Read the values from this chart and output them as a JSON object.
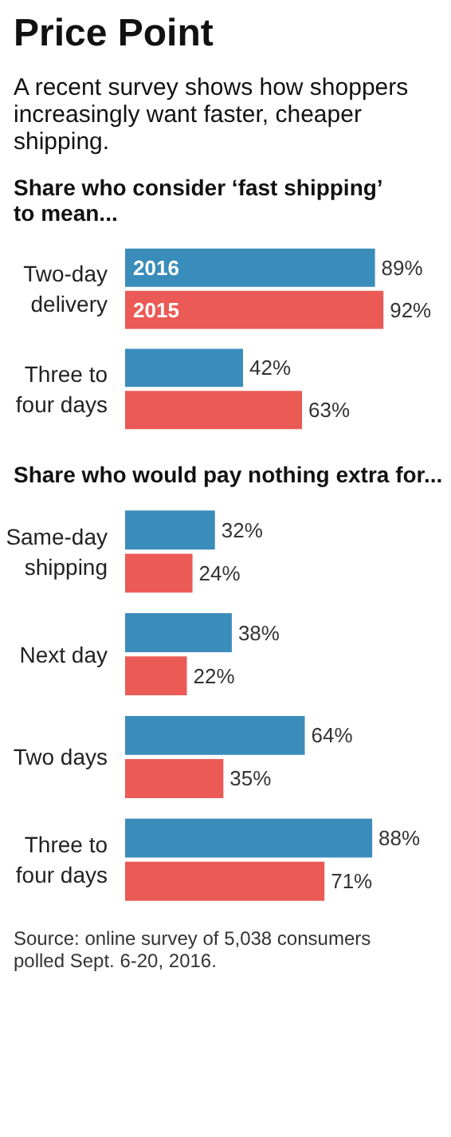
{
  "chart_data": [
    {
      "type": "bar",
      "orientation": "horizontal",
      "title": "Price Point",
      "subtitle": "A recent survey shows how shoppers increasingly want faster, cheaper shipping.",
      "annotations": [
        "Share who consider ‘fast shipping’ to mean..."
      ],
      "categories": [
        "Two-day delivery",
        "Three to four days"
      ],
      "tick_labels": "y",
      "grid": false,
      "series": [
        {
          "name": "2016",
          "color": "#3a8dbb",
          "values": [
            89,
            42
          ],
          "value_labels": [
            "89%",
            "42%"
          ]
        },
        {
          "name": "2015",
          "color": "#ec5a55",
          "values": [
            92,
            63
          ],
          "value_labels": [
            "92%",
            "63%"
          ]
        }
      ]
    },
    {
      "type": "bar",
      "orientation": "horizontal",
      "title": "Share who would pay nothing extra for...",
      "annotations": [
        "Source: online survey of 5,038 consumers polled Sept. 6-20, 2016."
      ],
      "categories": [
        "Same-day shipping",
        "Next day",
        "Two days",
        "Three to four days"
      ],
      "tick_labels": "y",
      "grid": false,
      "series": [
        {
          "color": "#3a8dbb",
          "values": [
            32,
            38,
            64,
            88
          ],
          "value_labels": [
            "32%",
            "38%",
            "64%",
            "88%"
          ]
        },
        {
          "color": "#ec5a55",
          "values": [
            24,
            22,
            35,
            71
          ],
          "value_labels": [
            "24%",
            "22%",
            "35%",
            "71%"
          ]
        }
      ]
    }
  ]
}
